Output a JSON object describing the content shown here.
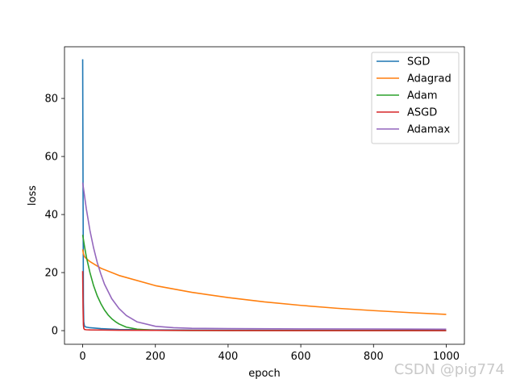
{
  "watermark": "CSDN @pig774",
  "chart_data": {
    "type": "line",
    "title": "",
    "xlabel": "epoch",
    "ylabel": "loss",
    "xlim": [
      -50,
      1050
    ],
    "ylim": [
      -4.7,
      97.8
    ],
    "xticks": [
      0,
      200,
      400,
      600,
      800,
      1000
    ],
    "yticks": [
      0,
      20,
      40,
      60,
      80
    ],
    "grid": false,
    "legend_position": "top-right",
    "series": [
      {
        "name": "SGD",
        "color": "#1f77b4",
        "x": [
          0,
          1,
          2,
          3,
          5,
          10,
          20,
          50,
          100,
          200,
          400,
          600,
          800,
          1000
        ],
        "y": [
          93.5,
          50,
          10,
          3,
          1.5,
          1.2,
          1.0,
          0.7,
          0.4,
          0.25,
          0.15,
          0.1,
          0.08,
          0.05
        ]
      },
      {
        "name": "Adagrad",
        "color": "#ff7f0e",
        "x": [
          0,
          2,
          5,
          10,
          20,
          50,
          100,
          200,
          300,
          400,
          500,
          600,
          700,
          800,
          900,
          1000
        ],
        "y": [
          28,
          26.5,
          25.5,
          24.8,
          23.8,
          21.5,
          19,
          15.5,
          13.2,
          11.4,
          9.9,
          8.7,
          7.7,
          6.9,
          6.2,
          5.6
        ]
      },
      {
        "name": "Adam",
        "color": "#2ca02c",
        "x": [
          0,
          5,
          10,
          20,
          30,
          40,
          50,
          60,
          70,
          80,
          90,
          100,
          120,
          150,
          200,
          300,
          500,
          1000
        ],
        "y": [
          33,
          29,
          25.5,
          20,
          15.5,
          12,
          9.3,
          7.1,
          5.4,
          4.1,
          3.1,
          2.3,
          1.2,
          0.5,
          0.1,
          0.05,
          0.05,
          0.05
        ]
      },
      {
        "name": "ASGD",
        "color": "#d62728",
        "x": [
          0,
          1,
          2,
          3,
          5,
          10,
          20,
          50,
          100,
          200,
          400,
          600,
          800,
          1000
        ],
        "y": [
          20.5,
          8,
          2,
          0.8,
          0.4,
          0.3,
          0.25,
          0.2,
          0.15,
          0.1,
          0.05,
          0.0,
          0.0,
          0.0
        ]
      },
      {
        "name": "Adamax",
        "color": "#9467bd",
        "x": [
          0,
          5,
          10,
          20,
          30,
          40,
          50,
          60,
          80,
          100,
          120,
          150,
          200,
          250,
          300,
          400,
          600,
          800,
          1000
        ],
        "y": [
          51,
          46.5,
          42,
          34.5,
          28.5,
          23.5,
          19.5,
          16,
          11,
          7.6,
          5.2,
          3.0,
          1.5,
          1.0,
          0.8,
          0.7,
          0.6,
          0.55,
          0.5
        ]
      }
    ]
  }
}
